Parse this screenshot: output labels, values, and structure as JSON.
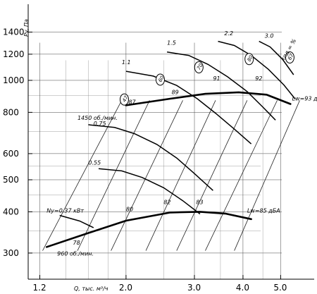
{
  "chart_data": {
    "type": "line",
    "xscale": "log",
    "yscale": "log",
    "xlim": [
      1.12,
      6.1
    ],
    "ylim": [
      250,
      1700
    ],
    "ylabel": "Pv, Па",
    "xlabel": "Q, тыс. м³/ч",
    "yticks": [
      {
        "v": 300,
        "label": "300"
      },
      {
        "v": 400,
        "label": "400"
      },
      {
        "v": 500,
        "label": "500"
      },
      {
        "v": 600,
        "label": "600"
      },
      {
        "v": 800,
        "label": "800"
      },
      {
        "v": 1000,
        "label": "1000"
      },
      {
        "v": 1200,
        "label": "1200"
      },
      {
        "v": 1400,
        "label": "1400"
      }
    ],
    "xticks": [
      {
        "v": 1.2,
        "label": "1.2"
      },
      {
        "v": 2.0,
        "label": "2.0"
      },
      {
        "v": 3.0,
        "label": "3.0"
      },
      {
        "v": 4.0,
        "label": "4.0"
      },
      {
        "v": 5.0,
        "label": "5.0"
      }
    ],
    "speed_curves": [
      {
        "label": "1450 об./мин.",
        "points": [
          [
            2.0,
            840
          ],
          [
            2.6,
            880
          ],
          [
            3.2,
            910
          ],
          [
            3.9,
            920
          ],
          [
            4.6,
            905
          ],
          [
            5.3,
            848
          ]
        ]
      },
      {
        "label": "960 об./мин.",
        "points": [
          [
            1.25,
            313
          ],
          [
            1.6,
            345
          ],
          [
            2.0,
            376
          ],
          [
            2.6,
            398
          ],
          [
            3.1,
            400
          ],
          [
            3.6,
            395
          ],
          [
            4.2,
            380
          ]
        ]
      }
    ],
    "power_curves": [
      {
        "label": "0.75",
        "points": [
          [
            1.6,
            734
          ],
          [
            1.87,
            720
          ],
          [
            2.1,
            690
          ],
          [
            2.4,
            640
          ],
          [
            2.7,
            582
          ],
          [
            3.0,
            522
          ],
          [
            3.35,
            464
          ]
        ]
      },
      {
        "label": "0.55",
        "points": [
          [
            1.7,
            540
          ],
          [
            1.95,
            532
          ],
          [
            2.2,
            508
          ],
          [
            2.5,
            473
          ],
          [
            2.8,
            432
          ],
          [
            3.1,
            394
          ]
        ]
      },
      {
        "label": "Ny=0.37 кВт",
        "points": [
          [
            1.35,
            390
          ],
          [
            1.52,
            375
          ],
          [
            1.65,
            358
          ]
        ]
      },
      {
        "label": "1.1",
        "points": [
          [
            2.0,
            1065
          ],
          [
            2.35,
            1030
          ],
          [
            2.7,
            965
          ],
          [
            3.05,
            880
          ],
          [
            3.4,
            795
          ],
          [
            3.8,
            712
          ],
          [
            4.2,
            642
          ]
        ]
      },
      {
        "label": "1.5",
        "points": [
          [
            2.55,
            1218
          ],
          [
            2.9,
            1190
          ],
          [
            3.25,
            1118
          ],
          [
            3.65,
            1025
          ],
          [
            4.1,
            925
          ],
          [
            4.5,
            830
          ],
          [
            4.85,
            758
          ]
        ]
      },
      {
        "label": "2.2",
        "points": [
          [
            3.45,
            1313
          ],
          [
            3.8,
            1275
          ],
          [
            4.2,
            1190
          ],
          [
            4.65,
            1080
          ],
          [
            5.1,
            968
          ],
          [
            5.45,
            878
          ]
        ]
      },
      {
        "label": "3.0",
        "points": [
          [
            4.4,
            1313
          ],
          [
            4.7,
            1262
          ],
          [
            5.05,
            1160
          ],
          [
            5.4,
            1040
          ]
        ]
      }
    ],
    "efficiency_labels": [
      {
        "eff": "78",
        "q": 1.46,
        "p": 318
      },
      {
        "eff": "80",
        "q": 2.0,
        "p": 402
      },
      {
        "eff": "82",
        "q": 2.5,
        "p": 422
      },
      {
        "eff": "83",
        "q": 3.03,
        "p": 422
      },
      {
        "eff": "87",
        "q": 2.03,
        "p": 848
      },
      {
        "eff": "89",
        "q": 2.62,
        "p": 908
      },
      {
        "eff": "91",
        "q": 3.35,
        "p": 1000
      },
      {
        "eff": "92",
        "q": 4.3,
        "p": 1000
      }
    ],
    "efficiency_circles": [
      {
        "text": "47",
        "q": 1.98,
        "p": 875
      },
      {
        "text": "60",
        "q": 2.45,
        "p": 1005
      },
      {
        "text": "70",
        "q": 3.08,
        "p": 1095
      },
      {
        "text": "80",
        "q": 4.15,
        "p": 1160
      },
      {
        "text": "67",
        "q": 5.28,
        "p": 1173
      }
    ],
    "kpd_label": "кпд = %",
    "noise_labels": [
      {
        "text": "Lw=93 дБА",
        "q": 5.35,
        "p": 870
      },
      {
        "text": "Lw=85 дБА",
        "q": 4.1,
        "p": 398
      }
    ],
    "speed_labels": [
      {
        "text": "1450 об./мин.",
        "q": 1.5,
        "p": 760
      },
      {
        "text": "960 об./мин.",
        "q": 1.33,
        "p": 295
      }
    ],
    "power_labels": [
      {
        "text": "0.75",
        "q": 1.65,
        "p": 730
      },
      {
        "text": "0.55",
        "q": 1.6,
        "p": 555
      },
      {
        "text": "Ny=0.37 кВт",
        "q": 1.25,
        "p": 398
      },
      {
        "text": "1.1",
        "q": 1.95,
        "p": 1120
      },
      {
        "text": "1.5",
        "q": 2.55,
        "p": 1283
      },
      {
        "text": "2.2",
        "q": 3.58,
        "p": 1370
      },
      {
        "text": "3.0",
        "q": 4.55,
        "p": 1345
      }
    ]
  }
}
